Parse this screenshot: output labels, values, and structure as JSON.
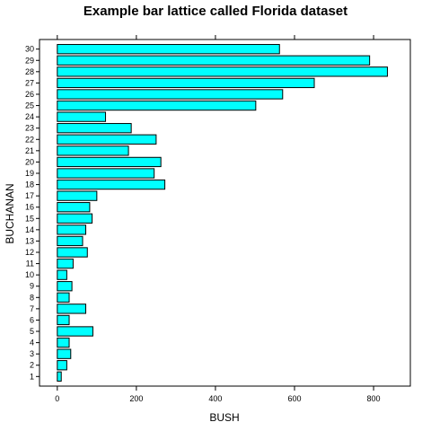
{
  "chart_data": {
    "type": "bar",
    "orientation": "horizontal",
    "title": "Example bar lattice called Florida dataset",
    "xlabel": "BUSH",
    "ylabel": "BUCHANAN",
    "categories": [
      "1",
      "2",
      "3",
      "4",
      "5",
      "6",
      "7",
      "8",
      "9",
      "10",
      "11",
      "12",
      "13",
      "14",
      "15",
      "16",
      "17",
      "18",
      "19",
      "20",
      "21",
      "22",
      "23",
      "24",
      "25",
      "26",
      "27",
      "28",
      "29",
      "30"
    ],
    "values": [
      10,
      24,
      34,
      30,
      90,
      30,
      72,
      30,
      37,
      24,
      40,
      76,
      64,
      72,
      88,
      82,
      100,
      272,
      245,
      262,
      180,
      250,
      187,
      122,
      502,
      570,
      650,
      835,
      790,
      562
    ],
    "xlim": [
      -45,
      893
    ],
    "xticks": [
      0,
      200,
      400,
      600,
      800
    ],
    "bar_color": "#00ffff",
    "grid": false
  }
}
